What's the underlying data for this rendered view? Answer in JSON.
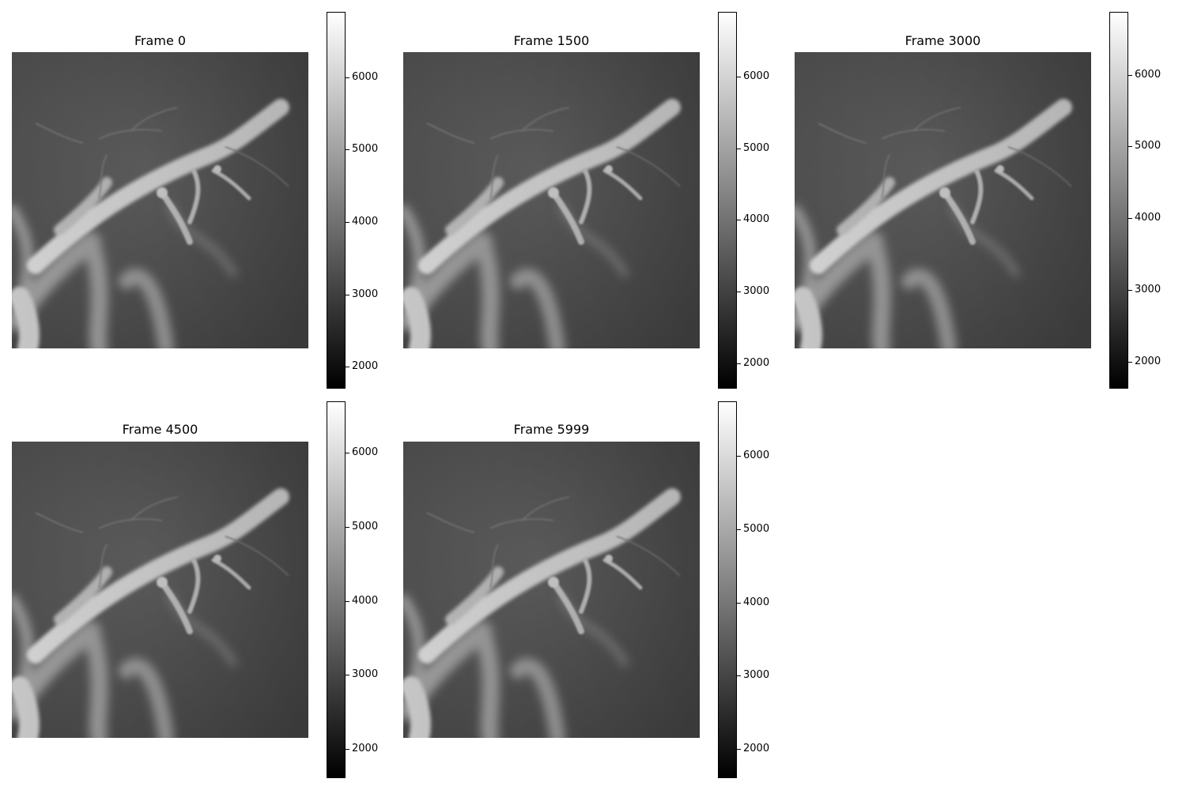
{
  "chart_data": [
    {
      "type": "heatmap",
      "title": "Frame 0",
      "colormap": "gray",
      "colorbar": {
        "min": 1700,
        "max": 6900,
        "ticks": [
          2000,
          3000,
          4000,
          5000,
          6000
        ],
        "tick_labels": [
          "2000",
          "3000",
          "4000",
          "5000",
          "6000"
        ]
      }
    },
    {
      "type": "heatmap",
      "title": "Frame 1500",
      "colormap": "gray",
      "colorbar": {
        "min": 1650,
        "max": 6900,
        "ticks": [
          2000,
          3000,
          4000,
          5000,
          6000
        ],
        "tick_labels": [
          "2000",
          "3000",
          "4000",
          "5000",
          "6000"
        ]
      }
    },
    {
      "type": "heatmap",
      "title": "Frame 3000",
      "colormap": "gray",
      "colorbar": {
        "min": 1620,
        "max": 6880,
        "ticks": [
          2000,
          3000,
          4000,
          5000,
          6000
        ],
        "tick_labels": [
          "2000",
          "3000",
          "4000",
          "5000",
          "6000"
        ]
      }
    },
    {
      "type": "heatmap",
      "title": "Frame 4500",
      "colormap": "gray",
      "colorbar": {
        "min": 1600,
        "max": 6700,
        "ticks": [
          2000,
          3000,
          4000,
          5000,
          6000
        ],
        "tick_labels": [
          "2000",
          "3000",
          "4000",
          "5000",
          "6000"
        ]
      }
    },
    {
      "type": "heatmap",
      "title": "Frame 5999",
      "colormap": "gray",
      "colorbar": {
        "min": 1600,
        "max": 6750,
        "ticks": [
          2000,
          3000,
          4000,
          5000,
          6000
        ],
        "tick_labels": [
          "2000",
          "3000",
          "4000",
          "5000",
          "6000"
        ]
      }
    }
  ]
}
